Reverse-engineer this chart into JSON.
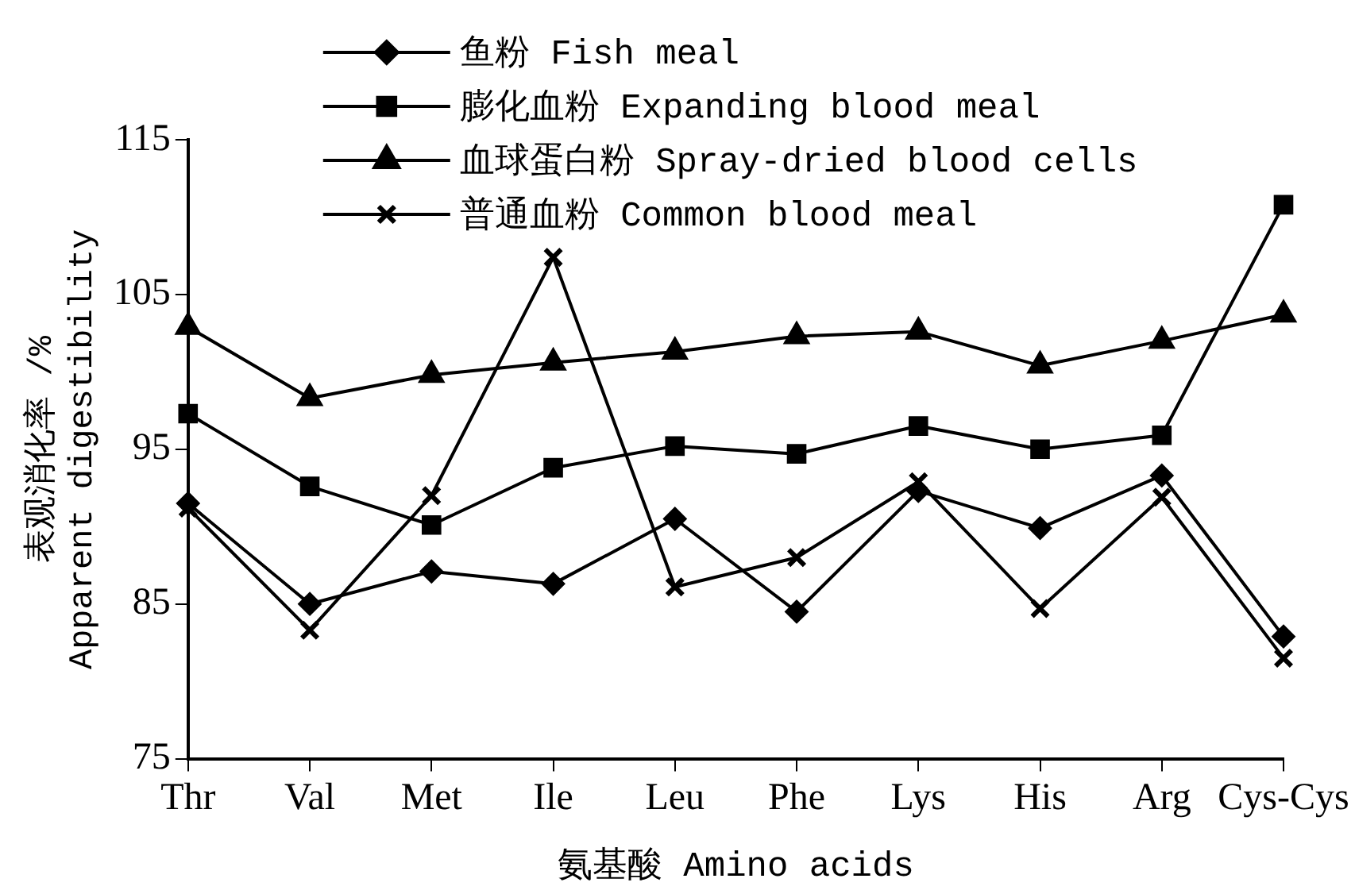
{
  "chart_data": {
    "type": "line",
    "xlabel": "氨基酸 Amino acids",
    "ylabel": [
      "表观消化率 /%",
      "Apparent digestibility"
    ],
    "categories": [
      "Thr",
      "Val",
      "Met",
      "Ile",
      "Leu",
      "Phe",
      "Lys",
      "His",
      "Arg",
      "Cys-Cys"
    ],
    "ylim": [
      75,
      115
    ],
    "yticks": [
      75,
      85,
      95,
      105,
      115
    ],
    "grid": false,
    "legend": "top left",
    "series": [
      {
        "name": "鱼粉 Fish meal",
        "color": "#000000",
        "marker": "diamond",
        "values": [
          91.5,
          85.0,
          87.1,
          86.3,
          90.5,
          84.5,
          92.3,
          89.9,
          93.3,
          82.9
        ]
      },
      {
        "name": "膨化血粉 Expanding blood meal",
        "color": "#000000",
        "marker": "square",
        "values": [
          97.3,
          92.6,
          90.1,
          93.8,
          95.2,
          94.7,
          96.5,
          95.0,
          95.9,
          110.8
        ]
      },
      {
        "name": "血球蛋白粉 Spray-dried blood cells",
        "color": "#000000",
        "marker": "triangle",
        "values": [
          102.9,
          98.3,
          99.8,
          100.6,
          101.3,
          102.3,
          102.6,
          100.4,
          102.0,
          103.7
        ]
      },
      {
        "name": "普通血粉 Common blood meal",
        "color": "#000000",
        "marker": "cross",
        "values": [
          91.2,
          83.3,
          92.0,
          107.4,
          86.1,
          88.0,
          92.9,
          84.7,
          91.9,
          81.5
        ]
      }
    ]
  }
}
